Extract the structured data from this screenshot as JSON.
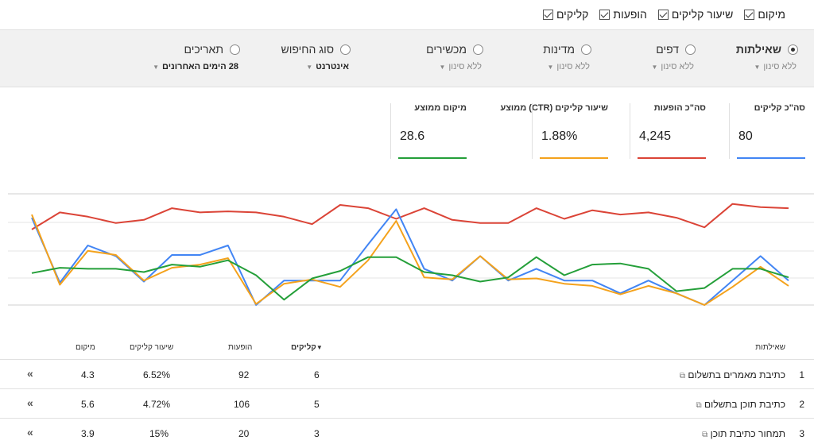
{
  "metrics_bar": {
    "clicks": "קליקים",
    "impressions": "הופעות",
    "ctr": "שיעור קליקים",
    "position": "מיקום"
  },
  "filters": [
    {
      "label": "שאילתות",
      "sub": "ללא סינון",
      "selected": true
    },
    {
      "label": "דפים",
      "sub": "ללא סינון",
      "selected": false
    },
    {
      "label": "מדינות",
      "sub": "ללא סינון",
      "selected": false
    },
    {
      "label": "מכשירים",
      "sub": "ללא סינון",
      "selected": false
    },
    {
      "label": "סוג החיפוש",
      "sub": "אינטרנט",
      "selected": false
    },
    {
      "label": "תאריכים",
      "sub": "28 הימים האחרונים",
      "selected": false
    }
  ],
  "totals": {
    "clicks_title": "סה\"כ קליקים",
    "clicks_value": "80",
    "impressions_title": "סה\"כ הופעות",
    "impressions_value": "4,245",
    "ctr_title": "שיעור קליקים (CTR) ממוצע",
    "ctr_value": "1.88%",
    "position_title": "מיקום ממוצע",
    "position_value": "28.6"
  },
  "colors": {
    "clicks": "#4285f4",
    "impressions": "#db4437",
    "ctr": "#f4a21c",
    "position": "#249f39"
  },
  "chart_data": {
    "type": "line",
    "series": [
      {
        "key": "impressions",
        "values": [
          71,
          87,
          83,
          77,
          80,
          91,
          87,
          88,
          87,
          83,
          76,
          94,
          91,
          81,
          91,
          80,
          77,
          77,
          91,
          81,
          89,
          85,
          87,
          82,
          73,
          95,
          92,
          91
        ]
      },
      {
        "key": "clicks",
        "values": [
          82,
          21,
          56,
          46,
          22,
          47,
          47,
          56,
          0,
          23,
          23,
          23,
          57,
          90,
          34,
          23,
          46,
          23,
          34,
          23,
          23,
          11,
          23,
          11,
          0,
          23,
          46,
          23
        ]
      },
      {
        "key": "ctr",
        "values": [
          85,
          19,
          51,
          47,
          23,
          35,
          38,
          44,
          1,
          20,
          24,
          17,
          42,
          79,
          26,
          24,
          46,
          24,
          25,
          20,
          18,
          10,
          18,
          11,
          0,
          17,
          36,
          18
        ]
      },
      {
        "key": "position",
        "values": [
          30,
          35,
          34,
          34,
          31,
          38,
          36,
          42,
          28,
          5,
          25,
          32,
          45,
          45,
          31,
          28,
          22,
          26,
          45,
          28,
          38,
          39,
          34,
          13,
          16,
          34,
          34,
          26
        ]
      }
    ]
  },
  "table": {
    "headers": {
      "query": "שאילתות",
      "clicks": "קליקים",
      "impressions": "הופעות",
      "ctr": "שיעור קליקים",
      "position": "מיקום"
    },
    "rows": [
      {
        "index": "1",
        "query": "כתיבת מאמרים בתשלום",
        "clicks": "6",
        "impressions": "92",
        "ctr": "6.52%",
        "position": "4.3"
      },
      {
        "index": "2",
        "query": "כתיבת תוכן בתשלום",
        "clicks": "5",
        "impressions": "106",
        "ctr": "4.72%",
        "position": "5.6"
      },
      {
        "index": "3",
        "query": "תמחור כתיבת תוכן",
        "clicks": "3",
        "impressions": "20",
        "ctr": "15%",
        "position": "3.9"
      }
    ]
  }
}
